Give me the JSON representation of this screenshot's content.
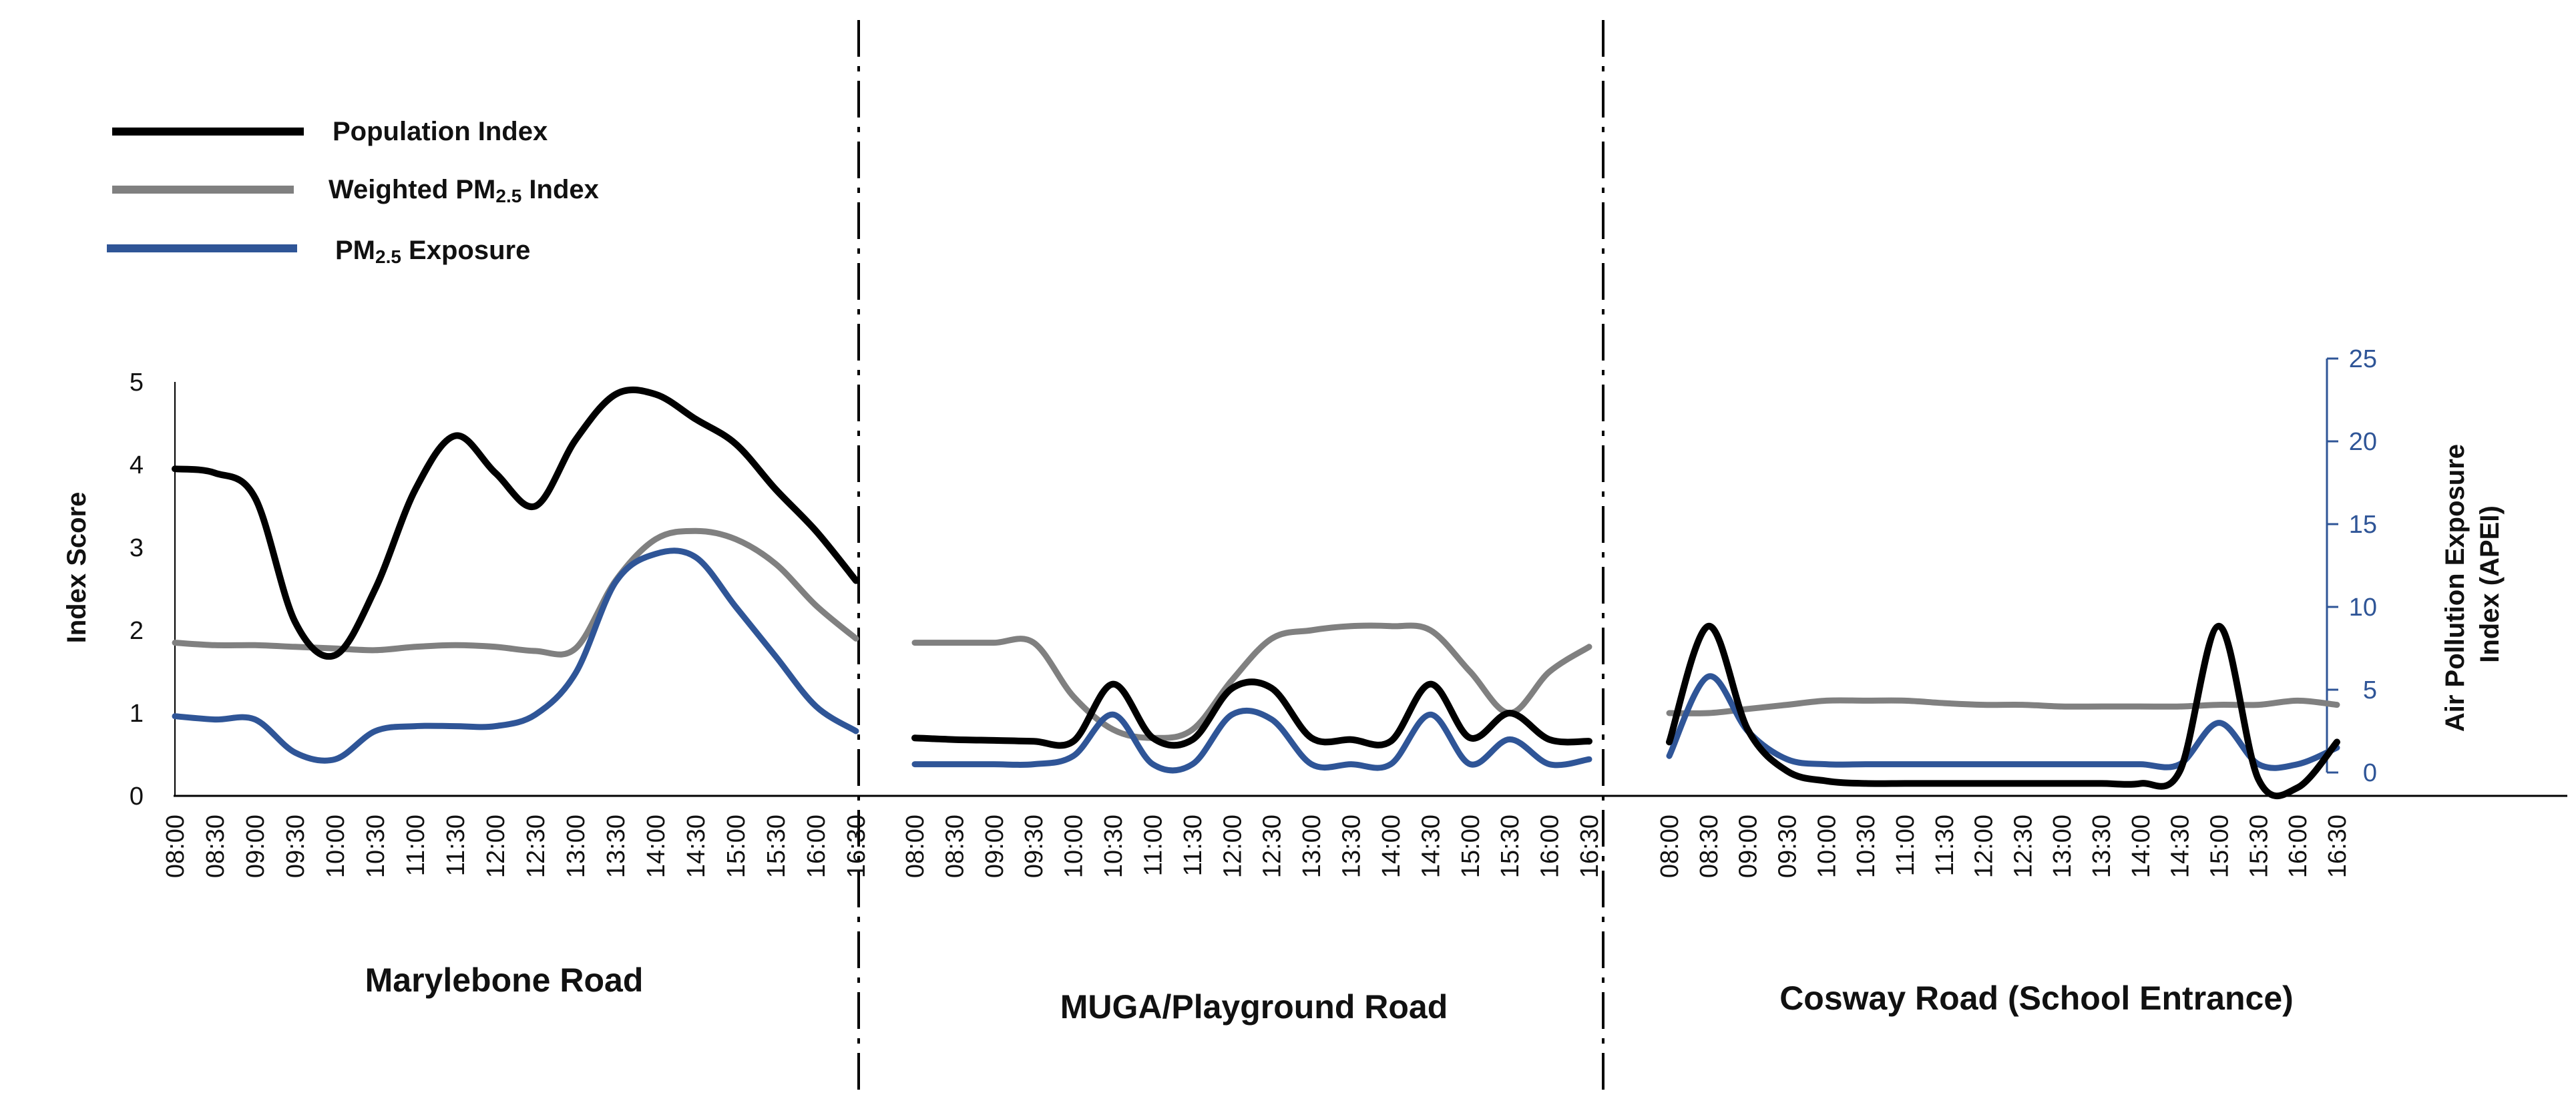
{
  "chart_data": {
    "type": "line",
    "title": "",
    "y_left_label": "Index Score",
    "y_right_label_line1": "Air Pollution Exposure",
    "y_right_label_line2": "Index  (APEI)",
    "y_left_range": [
      0,
      5
    ],
    "y_left_ticks": [
      "0",
      "1",
      "2",
      "3",
      "4",
      "5"
    ],
    "y_right_range": [
      0,
      25
    ],
    "y_right_ticks": [
      "0",
      "5",
      "10",
      "15",
      "20",
      "25"
    ],
    "legend": {
      "position": "top-left",
      "entries": [
        {
          "name": "Population Index",
          "prefix": "Population Index",
          "sub": "",
          "suffix": "",
          "color": "#000000"
        },
        {
          "name": "Weighted PM2.5 Index",
          "prefix": "Weighted PM",
          "sub": "2.5",
          "suffix": " Index",
          "color": "#808080"
        },
        {
          "name": "PM2.5 Exposure",
          "prefix": "PM",
          "sub": "2.5",
          "suffix": " Exposure",
          "color": "#2F5597"
        }
      ]
    },
    "segments": [
      {
        "name": "Marylebone Road",
        "times": [
          "08:00",
          "08:30",
          "09:00",
          "09:30",
          "10:00",
          "10:30",
          "11:00",
          "11:30",
          "12:00",
          "12:30",
          "13:00",
          "13:30",
          "14:00",
          "14:30",
          "15:00",
          "15:30",
          "16:00",
          "16:30"
        ],
        "series": {
          "population_index": [
            3.95,
            3.9,
            3.6,
            2.1,
            1.7,
            2.5,
            3.7,
            4.35,
            3.9,
            3.5,
            4.3,
            4.85,
            4.85,
            4.55,
            4.25,
            3.7,
            3.2,
            2.6
          ],
          "weighted_pm25_index": [
            1.85,
            1.82,
            1.82,
            1.8,
            1.78,
            1.76,
            1.8,
            1.82,
            1.8,
            1.75,
            1.78,
            2.6,
            3.1,
            3.2,
            3.1,
            2.8,
            2.3,
            1.9
          ],
          "pm25_exposure_apei": [
            3.4,
            3.2,
            3.2,
            1.2,
            0.8,
            2.5,
            2.8,
            2.8,
            2.8,
            3.5,
            6.0,
            11.5,
            13.2,
            13.0,
            10.0,
            7.0,
            4.0,
            2.5
          ]
        }
      },
      {
        "name": "MUGA/Playground Road",
        "times": [
          "08:00",
          "08:30",
          "09:00",
          "09:30",
          "10:00",
          "10:30",
          "11:00",
          "11:30",
          "12:00",
          "12:30",
          "13:00",
          "13:30",
          "14:00",
          "14:30",
          "15:00",
          "15:30",
          "16:00",
          "16:30"
        ],
        "series": {
          "population_index": [
            0.7,
            0.68,
            0.67,
            0.66,
            0.66,
            1.35,
            0.7,
            0.68,
            1.3,
            1.3,
            0.7,
            0.68,
            0.66,
            1.35,
            0.7,
            1.0,
            0.68,
            0.66
          ],
          "weighted_pm25_index": [
            1.85,
            1.85,
            1.85,
            1.85,
            1.2,
            0.8,
            0.7,
            0.8,
            1.4,
            1.9,
            2.0,
            2.05,
            2.05,
            2.0,
            1.5,
            1.0,
            1.5,
            1.8
          ],
          "pm25_exposure_apei": [
            0.5,
            0.5,
            0.5,
            0.5,
            1.0,
            3.5,
            0.5,
            0.5,
            3.5,
            3.2,
            0.5,
            0.5,
            0.5,
            3.5,
            0.5,
            2.0,
            0.5,
            0.8
          ]
        }
      },
      {
        "name": "Cosway Road (School Entrance)",
        "times": [
          "08:00",
          "08:30",
          "09:00",
          "09:30",
          "10:00",
          "10:30",
          "11:00",
          "11:30",
          "12:00",
          "12:30",
          "13:00",
          "13:30",
          "14:00",
          "14:30",
          "15:00",
          "15:30",
          "16:00",
          "16:30"
        ],
        "series": {
          "population_index": [
            0.65,
            2.05,
            0.8,
            0.3,
            0.18,
            0.15,
            0.15,
            0.15,
            0.15,
            0.15,
            0.15,
            0.15,
            0.15,
            0.3,
            2.05,
            0.2,
            0.1,
            0.65
          ],
          "weighted_pm25_index": [
            1.0,
            1.0,
            1.05,
            1.1,
            1.15,
            1.15,
            1.15,
            1.12,
            1.1,
            1.1,
            1.08,
            1.08,
            1.08,
            1.08,
            1.1,
            1.1,
            1.15,
            1.1
          ],
          "pm25_exposure_apei": [
            1.0,
            5.8,
            2.5,
            0.8,
            0.5,
            0.5,
            0.5,
            0.5,
            0.5,
            0.5,
            0.5,
            0.5,
            0.5,
            0.5,
            3.0,
            0.5,
            0.5,
            1.5
          ]
        }
      }
    ]
  }
}
